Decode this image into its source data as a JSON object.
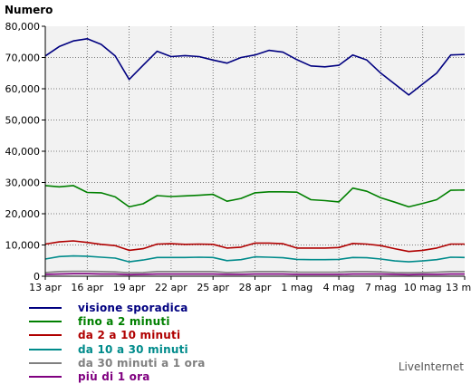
{
  "brand": "LiveInternet",
  "chart_data": {
    "type": "line",
    "ylabel": "Numero",
    "ylim": [
      0,
      80000
    ],
    "yticks": [
      "0",
      "10,000",
      "20,000",
      "30,000",
      "40,000",
      "50,000",
      "60,000",
      "70,000",
      "80,000"
    ],
    "x": [
      "13 apr",
      "14 apr",
      "15 apr",
      "16 apr",
      "17 apr",
      "18 apr",
      "19 apr",
      "20 apr",
      "21 apr",
      "22 apr",
      "23 apr",
      "24 apr",
      "25 apr",
      "26 apr",
      "27 apr",
      "28 apr",
      "29 apr",
      "30 apr",
      "1 mag",
      "2 mag",
      "3 mag",
      "4 mag",
      "5 mag",
      "6 mag",
      "7 mag",
      "8 mag",
      "9 mag",
      "10 mag",
      "11 mag",
      "12 mag",
      "13 mag"
    ],
    "xticks": [
      "13 apr",
      "16 apr",
      "19 apr",
      "22 apr",
      "25 apr",
      "28 apr",
      "1 mag",
      "4 mag",
      "7 mag",
      "10 mag",
      "13 mag"
    ],
    "grid": true,
    "legend_position": "bottom-left",
    "series": [
      {
        "name": "visione sporadica",
        "color": "#000080",
        "values": [
          70500,
          73500,
          75300,
          76000,
          74200,
          70500,
          63000,
          67500,
          72000,
          70300,
          70600,
          70300,
          69200,
          68200,
          70000,
          70800,
          72300,
          71700,
          69300,
          67300,
          67000,
          67500,
          70800,
          69200,
          65000,
          61500,
          58000,
          61500,
          65000,
          70800,
          71000
        ]
      },
      {
        "name": "fino a 2 minuti",
        "color": "#008000",
        "values": [
          29000,
          28600,
          29000,
          26800,
          26700,
          25400,
          22200,
          23200,
          25800,
          25500,
          25700,
          25900,
          26200,
          24000,
          24900,
          26700,
          27000,
          27000,
          26900,
          24500,
          24200,
          23800,
          28200,
          27200,
          25100,
          23700,
          22200,
          23300,
          24500,
          27500,
          27600
        ]
      },
      {
        "name": "da 2 a 10 minuti",
        "color": "#b00000",
        "values": [
          10300,
          11000,
          11300,
          10800,
          10200,
          9800,
          8300,
          8800,
          10300,
          10400,
          10200,
          10300,
          10200,
          9000,
          9300,
          10600,
          10600,
          10400,
          9000,
          9000,
          9000,
          9200,
          10500,
          10300,
          9800,
          8800,
          7900,
          8300,
          9000,
          10300,
          10300
        ]
      },
      {
        "name": "da 10 a 30 minuti",
        "color": "#008b8b",
        "values": [
          5500,
          6300,
          6500,
          6400,
          6100,
          5800,
          4600,
          5200,
          6000,
          6000,
          6000,
          6100,
          6000,
          5000,
          5300,
          6200,
          6100,
          5900,
          5400,
          5300,
          5300,
          5400,
          6000,
          5900,
          5500,
          4900,
          4600,
          4900,
          5300,
          6100,
          6000
        ]
      },
      {
        "name": "da 30 minuti a 1 ora",
        "color": "#808080",
        "values": [
          1200,
          1500,
          1600,
          1600,
          1500,
          1400,
          1100,
          1200,
          1500,
          1500,
          1500,
          1500,
          1500,
          1200,
          1300,
          1500,
          1500,
          1500,
          1300,
          1300,
          1300,
          1300,
          1500,
          1500,
          1400,
          1200,
          1100,
          1200,
          1300,
          1500,
          1500
        ]
      },
      {
        "name": "più di 1 ora",
        "color": "#800080",
        "values": [
          600,
          700,
          800,
          800,
          700,
          700,
          500,
          600,
          700,
          700,
          700,
          700,
          700,
          600,
          600,
          700,
          700,
          700,
          600,
          600,
          600,
          600,
          700,
          700,
          700,
          600,
          500,
          600,
          600,
          700,
          700
        ]
      }
    ]
  }
}
